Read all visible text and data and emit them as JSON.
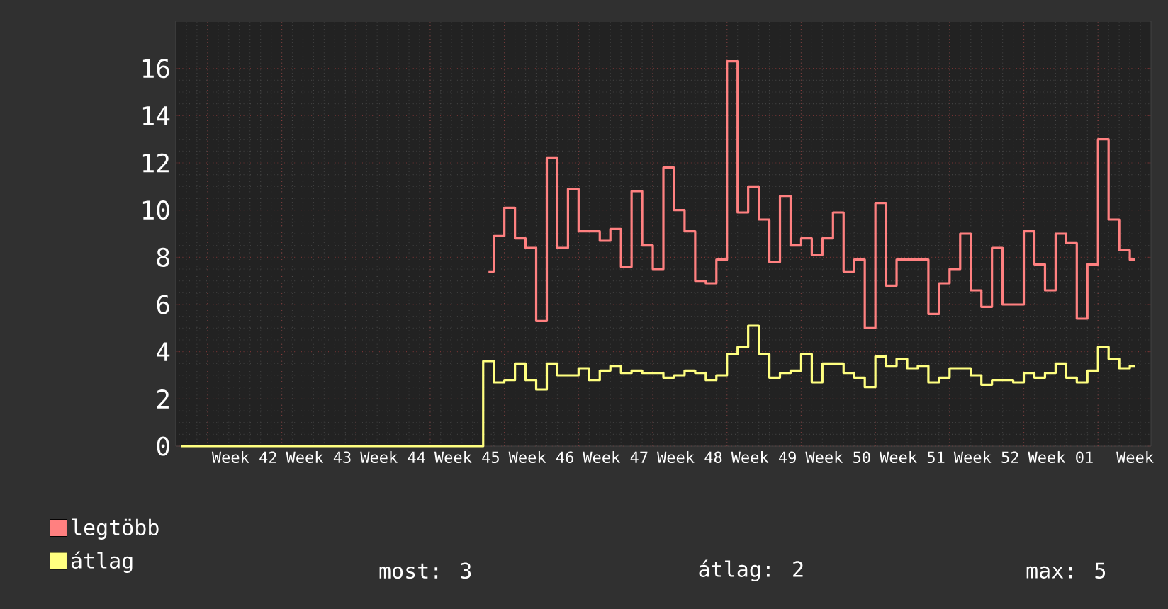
{
  "chart_data": {
    "type": "step",
    "categories": [
      null,
      null,
      null,
      null,
      null,
      null,
      "Week 42",
      null,
      null,
      null,
      null,
      null,
      null,
      "Week 43",
      null,
      null,
      null,
      null,
      null,
      null,
      "Week 44",
      null,
      null,
      null,
      null,
      null,
      null,
      "Week 45",
      null,
      null,
      null,
      null,
      null,
      null,
      "Week 46",
      null,
      null,
      null,
      null,
      null,
      null,
      "Week 47",
      null,
      null,
      null,
      null,
      null,
      null,
      "Week 48",
      null,
      null,
      null,
      null,
      null,
      null,
      "Week 49",
      null,
      null,
      null,
      null,
      null,
      null,
      "Week 50",
      null,
      null,
      null,
      null,
      null,
      null,
      "Week 51",
      null,
      null,
      null,
      null,
      null,
      null,
      "Week 52",
      null,
      null,
      null,
      null,
      null,
      null,
      "Week 01",
      null,
      null,
      null,
      null,
      null,
      null,
      "Week",
      null
    ],
    "series": [
      {
        "name": "legtöbb",
        "color": "#ff8080",
        "values": [
          null,
          null,
          null,
          null,
          null,
          null,
          null,
          null,
          null,
          null,
          null,
          null,
          null,
          null,
          null,
          null,
          null,
          null,
          null,
          null,
          null,
          null,
          null,
          null,
          null,
          null,
          null,
          null,
          null,
          7.4,
          8.9,
          10.1,
          8.8,
          8.4,
          5.3,
          12.2,
          8.4,
          10.9,
          9.1,
          9.1,
          8.7,
          9.2,
          7.6,
          10.8,
          8.5,
          7.5,
          11.8,
          10.0,
          9.1,
          7.0,
          6.9,
          7.9,
          16.3,
          9.9,
          11.0,
          9.6,
          7.8,
          10.6,
          8.5,
          8.8,
          8.1,
          8.8,
          9.9,
          7.4,
          7.9,
          5.0,
          10.3,
          6.8,
          7.9,
          7.9,
          7.9,
          5.6,
          6.9,
          7.5,
          9.0,
          6.6,
          5.9,
          8.4,
          6.0,
          6.0,
          9.1,
          7.7,
          6.6,
          9.0,
          8.6,
          5.4,
          7.7,
          13.0,
          9.6,
          8.3,
          7.9,
          null
        ]
      },
      {
        "name": "átlag",
        "color": "#ffff80",
        "values": [
          0,
          0,
          0,
          0,
          0,
          0,
          0,
          0,
          0,
          0,
          0,
          0,
          0,
          0,
          0,
          0,
          0,
          0,
          0,
          0,
          0,
          0,
          0,
          0,
          0,
          0,
          0,
          0,
          0,
          3.6,
          2.7,
          2.8,
          3.5,
          2.8,
          2.4,
          3.5,
          3.0,
          3.0,
          3.3,
          2.8,
          3.2,
          3.4,
          3.1,
          3.2,
          3.1,
          3.1,
          2.9,
          3.0,
          3.2,
          3.1,
          2.8,
          3.0,
          3.9,
          4.2,
          5.1,
          3.9,
          2.9,
          3.1,
          3.2,
          3.9,
          2.7,
          3.5,
          3.5,
          3.1,
          2.9,
          2.5,
          3.8,
          3.4,
          3.7,
          3.3,
          3.4,
          2.7,
          2.9,
          3.3,
          3.3,
          3.0,
          2.6,
          2.8,
          2.8,
          2.7,
          3.1,
          2.9,
          3.1,
          3.5,
          2.9,
          2.7,
          3.2,
          4.2,
          3.7,
          3.3,
          3.4,
          null
        ]
      }
    ],
    "ylim": [
      0,
      18
    ],
    "yticks": [
      0,
      2,
      4,
      6,
      8,
      10,
      12,
      14,
      16
    ],
    "grid": true,
    "legend": "bottom",
    "annotations": [
      "most: 3",
      "átlag: 2",
      "max: 5"
    ]
  }
}
